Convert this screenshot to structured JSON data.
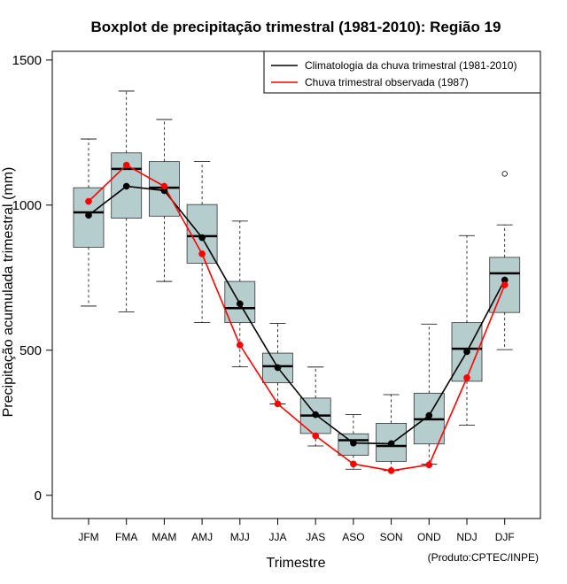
{
  "chart_data": {
    "type": "boxplot",
    "title": "Boxplot de precipitação trimestral (1981-2010): Região 19",
    "xlabel": "Trimestre",
    "ylabel": "Precipitação acumulada trimestral (mm)",
    "credit": "(Produto:CPTEC/INPE)",
    "ylim": [
      -80,
      1530
    ],
    "yticks": [
      0,
      500,
      1000,
      1500
    ],
    "categories": [
      "JFM",
      "FMA",
      "MAM",
      "AMJ",
      "MJJ",
      "JJA",
      "JAS",
      "ASO",
      "SON",
      "OND",
      "NDJ",
      "DJF"
    ],
    "boxes": [
      {
        "min": 652,
        "q1": 855,
        "median": 975,
        "q3": 1060,
        "max": 1228,
        "outliers": []
      },
      {
        "min": 632,
        "q1": 955,
        "median": 1125,
        "q3": 1180,
        "max": 1393,
        "outliers": []
      },
      {
        "min": 737,
        "q1": 962,
        "median": 1060,
        "q3": 1150,
        "max": 1295,
        "outliers": []
      },
      {
        "min": 595,
        "q1": 800,
        "median": 893,
        "q3": 1002,
        "max": 1150,
        "outliers": []
      },
      {
        "min": 443,
        "q1": 595,
        "median": 645,
        "q3": 737,
        "max": 945,
        "outliers": []
      },
      {
        "min": 315,
        "q1": 388,
        "median": 445,
        "q3": 490,
        "max": 592,
        "outliers": []
      },
      {
        "min": 170,
        "q1": 213,
        "median": 275,
        "q3": 335,
        "max": 442,
        "outliers": []
      },
      {
        "min": 90,
        "q1": 138,
        "median": 190,
        "q3": 212,
        "max": 278,
        "outliers": []
      },
      {
        "min": 85,
        "q1": 117,
        "median": 170,
        "q3": 248,
        "max": 347,
        "outliers": []
      },
      {
        "min": 107,
        "q1": 177,
        "median": 262,
        "q3": 352,
        "max": 590,
        "outliers": []
      },
      {
        "min": 242,
        "q1": 393,
        "median": 505,
        "q3": 595,
        "max": 895,
        "outliers": []
      },
      {
        "min": 502,
        "q1": 630,
        "median": 765,
        "q3": 820,
        "max": 932,
        "outliers": [
          1108
        ]
      }
    ],
    "series": [
      {
        "name": "Climatologia da chuva trimestral (1981-2010)",
        "color": "#000000",
        "values": [
          965,
          1065,
          1050,
          888,
          660,
          440,
          278,
          180,
          178,
          275,
          495,
          742
        ]
      },
      {
        "name": "Chuva trimestral observada (1987)",
        "color": "#ff0000",
        "values": [
          1013,
          1138,
          1065,
          832,
          518,
          315,
          205,
          108,
          85,
          105,
          405,
          725
        ]
      }
    ],
    "box_color": "#b5cdcd",
    "legend_position": "top-right"
  }
}
